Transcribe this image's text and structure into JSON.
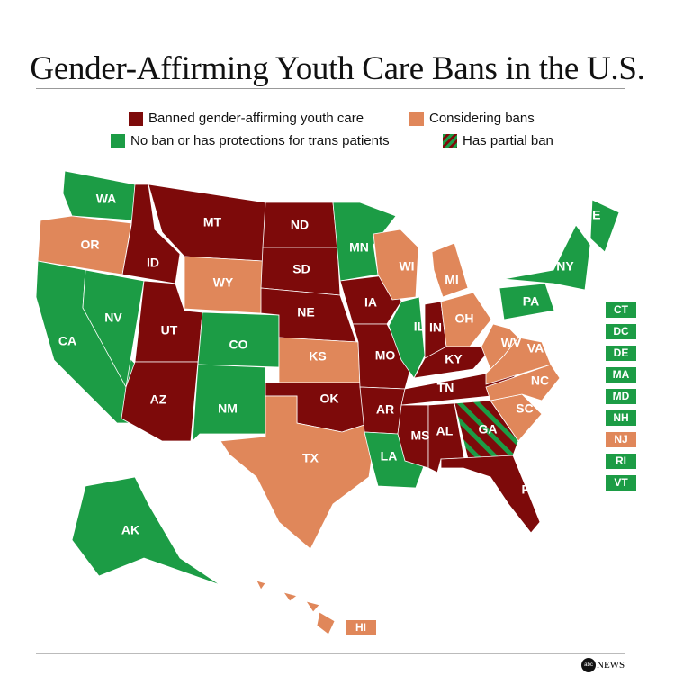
{
  "title": "Gender-Affirming Youth Care Bans in the U.S.",
  "colors": {
    "banned": "#7d0a0a",
    "considering": "#e0875a",
    "no_ban": "#1c9c45",
    "partial_stripe": "#1c9c45"
  },
  "legend": [
    {
      "key": "banned",
      "label": "Banned gender-affirming youth care"
    },
    {
      "key": "considering",
      "label": "Considering bans"
    },
    {
      "key": "no_ban",
      "label": "No ban or has protections for trans patients"
    },
    {
      "key": "partial",
      "label": "Has partial ban"
    }
  ],
  "states": {
    "WA": "no_ban",
    "OR": "considering",
    "CA": "no_ban",
    "NV": "no_ban",
    "ID": "banned",
    "MT": "banned",
    "WY": "considering",
    "UT": "banned",
    "AZ": "banned",
    "CO": "no_ban",
    "NM": "no_ban",
    "ND": "banned",
    "SD": "banned",
    "NE": "banned",
    "KS": "considering",
    "OK": "banned",
    "TX": "considering",
    "MN": "no_ban",
    "IA": "banned",
    "MO": "banned",
    "AR": "banned",
    "LA": "no_ban",
    "WI": "considering",
    "IL": "no_ban",
    "MI": "considering",
    "IN": "banned",
    "OH": "considering",
    "KY": "banned",
    "TN": "banned",
    "MS": "banned",
    "AL": "banned",
    "GA": "partial",
    "FL": "banned",
    "SC": "considering",
    "NC": "considering",
    "VA": "considering",
    "WV": "considering",
    "PA": "no_ban",
    "NY": "no_ban",
    "ME": "no_ban",
    "AK": "no_ban",
    "HI": "considering"
  },
  "small_states": [
    {
      "code": "CT",
      "status": "no_ban"
    },
    {
      "code": "DC",
      "status": "no_ban"
    },
    {
      "code": "DE",
      "status": "no_ban"
    },
    {
      "code": "MA",
      "status": "no_ban"
    },
    {
      "code": "MD",
      "status": "no_ban"
    },
    {
      "code": "NH",
      "status": "no_ban"
    },
    {
      "code": "NJ",
      "status": "considering"
    },
    {
      "code": "RI",
      "status": "no_ban"
    },
    {
      "code": "VT",
      "status": "no_ban"
    }
  ],
  "logo": {
    "mark": "abc",
    "text": "NEWS"
  }
}
